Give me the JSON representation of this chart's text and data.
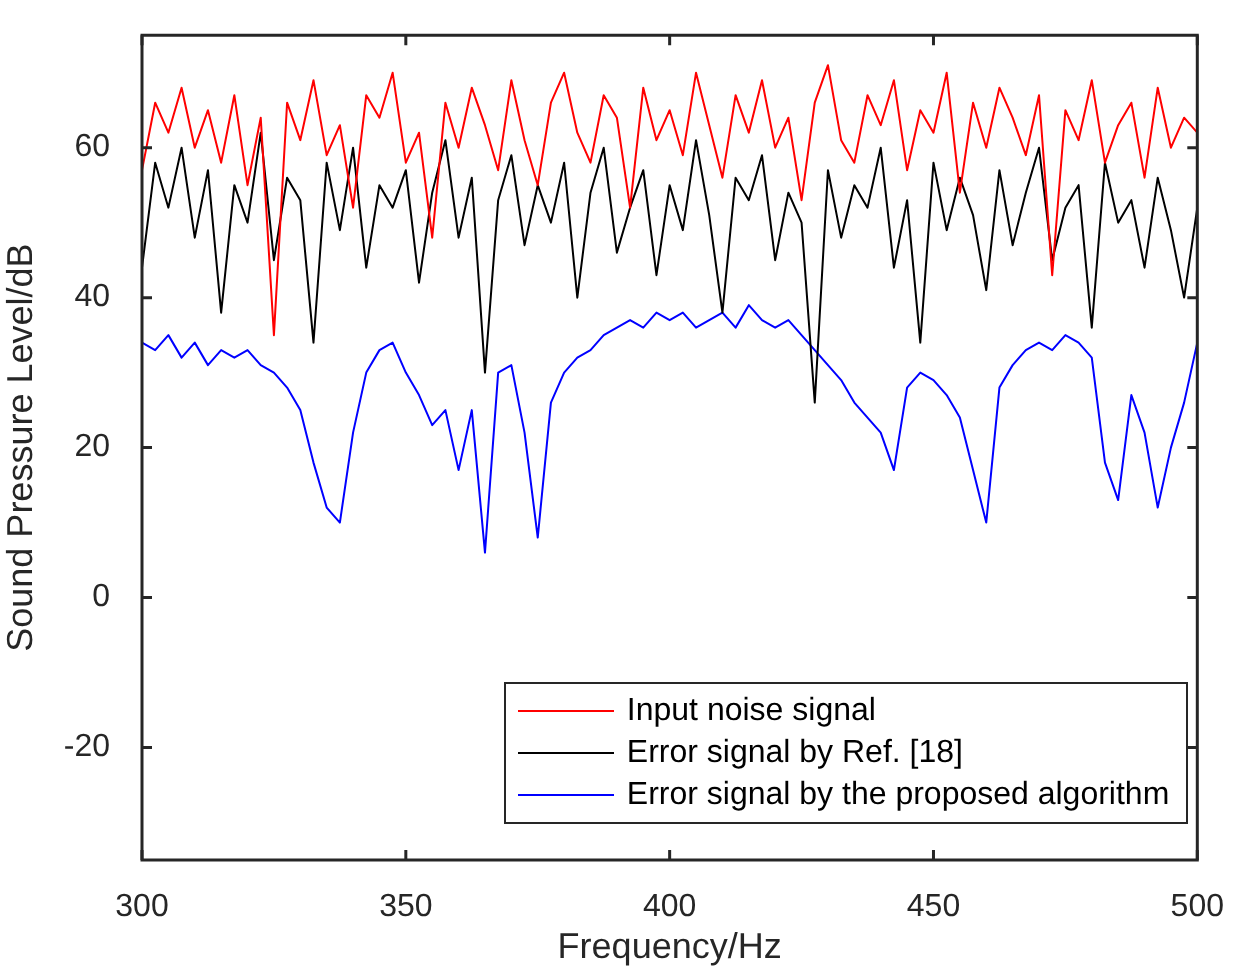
{
  "chart_data": {
    "type": "line",
    "xlabel": "Frequency/Hz",
    "ylabel": "Sound Pressure Level/dB",
    "x": [
      300,
      302.5,
      305,
      307.5,
      310,
      312.5,
      315,
      317.5,
      320,
      322.5,
      325,
      327.5,
      330,
      332.5,
      335,
      337.5,
      340,
      342.5,
      345,
      347.5,
      350,
      352.5,
      355,
      357.5,
      360,
      362.5,
      365,
      367.5,
      370,
      372.5,
      375,
      377.5,
      380,
      382.5,
      385,
      387.5,
      390,
      392.5,
      395,
      397.5,
      400,
      402.5,
      405,
      407.5,
      410,
      412.5,
      415,
      417.5,
      420,
      422.5,
      425,
      427.5,
      430,
      432.5,
      435,
      437.5,
      440,
      442.5,
      445,
      447.5,
      450,
      452.5,
      455,
      457.5,
      460,
      462.5,
      465,
      467.5,
      470,
      472.5,
      475,
      477.5,
      480,
      482.5,
      485,
      487.5,
      490,
      492.5,
      495,
      497.5,
      500
    ],
    "xlim": [
      300,
      500
    ],
    "ylim": [
      -35,
      75
    ],
    "xticks": [
      300,
      350,
      400,
      450,
      500
    ],
    "yticks": [
      -20,
      0,
      20,
      40,
      60
    ],
    "legend": "bottom right",
    "series": [
      {
        "name": "Input noise signal",
        "color": "#ff0000",
        "values": [
          57,
          66,
          62,
          68,
          60,
          65,
          58,
          67,
          55,
          64,
          35,
          66,
          61,
          69,
          59,
          63,
          52,
          67,
          64,
          70,
          58,
          62,
          48,
          66,
          60,
          68,
          63,
          57,
          69,
          61,
          55,
          66,
          70,
          62,
          58,
          67,
          64,
          52,
          68,
          61,
          65,
          59,
          70,
          63,
          56,
          67,
          62,
          69,
          60,
          64,
          53,
          66,
          71,
          61,
          58,
          67,
          63,
          69,
          57,
          65,
          62,
          70,
          54,
          66,
          60,
          68,
          64,
          59,
          67,
          43,
          65,
          61,
          69,
          58,
          63,
          66,
          56,
          68,
          60,
          64,
          62
        ]
      },
      {
        "name": "Error signal by Ref. [18]",
        "color": "#000000",
        "values": [
          44,
          58,
          52,
          60,
          48,
          57,
          38,
          55,
          50,
          62,
          45,
          56,
          53,
          34,
          58,
          49,
          60,
          44,
          55,
          52,
          57,
          42,
          54,
          61,
          48,
          56,
          30,
          53,
          59,
          47,
          55,
          50,
          58,
          40,
          54,
          60,
          46,
          52,
          57,
          43,
          55,
          49,
          61,
          51,
          38,
          56,
          53,
          59,
          45,
          54,
          50,
          26,
          57,
          48,
          55,
          52,
          60,
          44,
          53,
          34,
          58,
          49,
          56,
          51,
          41,
          57,
          47,
          54,
          60,
          45,
          52,
          55,
          36,
          58,
          50,
          53,
          44,
          56,
          49,
          40,
          52
        ]
      },
      {
        "name": "Error signal by the proposed algorithm",
        "color": "#0000ff",
        "values": [
          34,
          33,
          35,
          32,
          34,
          31,
          33,
          32,
          33,
          31,
          30,
          28,
          25,
          18,
          12,
          10,
          22,
          30,
          33,
          34,
          30,
          27,
          23,
          25,
          17,
          25,
          6,
          30,
          31,
          22,
          8,
          26,
          30,
          32,
          33,
          35,
          36,
          37,
          36,
          38,
          37,
          38,
          36,
          37,
          38,
          36,
          39,
          37,
          36,
          37,
          35,
          33,
          31,
          29,
          26,
          24,
          22,
          17,
          28,
          30,
          29,
          27,
          24,
          17,
          10,
          28,
          31,
          33,
          34,
          33,
          35,
          34,
          32,
          18,
          13,
          27,
          22,
          12,
          20,
          26,
          34
        ]
      }
    ]
  }
}
